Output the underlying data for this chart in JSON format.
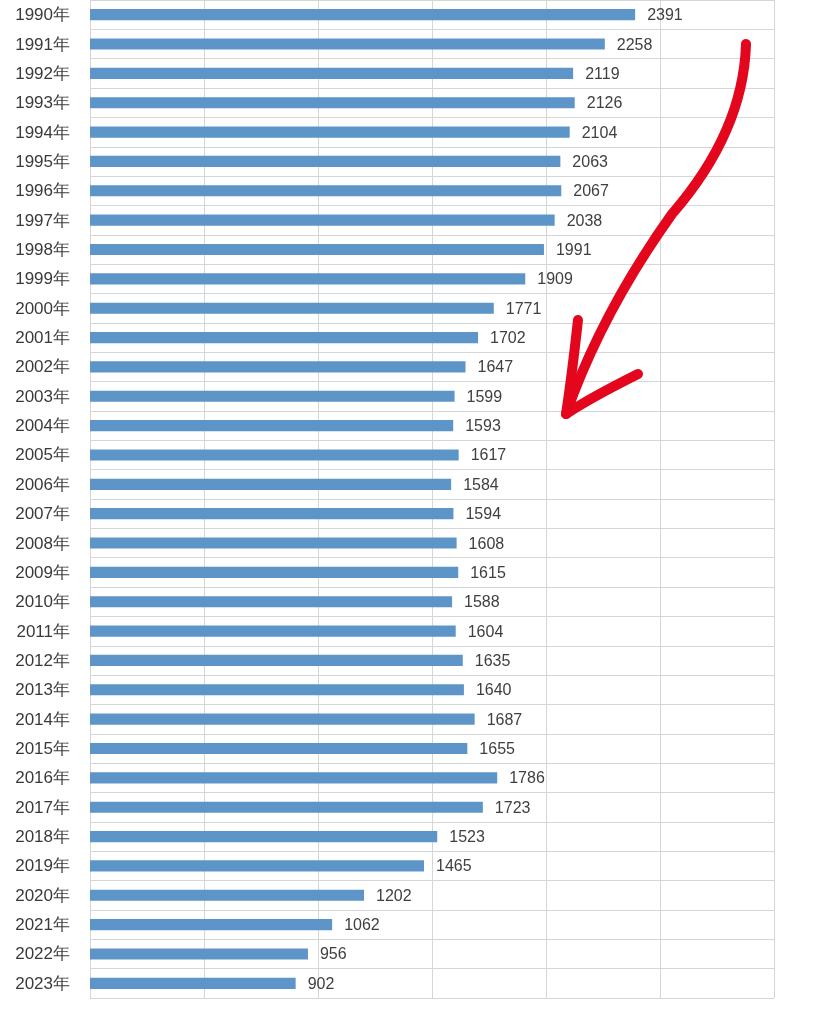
{
  "chart_data": {
    "type": "bar",
    "orientation": "horizontal",
    "categories": [
      "1990年",
      "1991年",
      "1992年",
      "1993年",
      "1994年",
      "1995年",
      "1996年",
      "1997年",
      "1998年",
      "1999年",
      "2000年",
      "2001年",
      "2002年",
      "2003年",
      "2004年",
      "2005年",
      "2006年",
      "2007年",
      "2008年",
      "2009年",
      "2010年",
      "2011年",
      "2012年",
      "2013年",
      "2014年",
      "2015年",
      "2016年",
      "2017年",
      "2018年",
      "2019年",
      "2020年",
      "2021年",
      "2022年",
      "2023年"
    ],
    "values": [
      2391,
      2258,
      2119,
      2126,
      2104,
      2063,
      2067,
      2038,
      1991,
      1909,
      1771,
      1702,
      1647,
      1599,
      1593,
      1617,
      1584,
      1594,
      1608,
      1615,
      1588,
      1604,
      1635,
      1640,
      1687,
      1655,
      1786,
      1723,
      1523,
      1465,
      1202,
      1062,
      956,
      902
    ],
    "color": "#5e95c9",
    "xlim": [
      0,
      3000
    ],
    "xticks": [
      {
        "value": 0,
        "label": null
      },
      {
        "value": 500,
        "label": null
      },
      {
        "value": 1000,
        "label": null
      },
      {
        "value": 1500,
        "label": null
      },
      {
        "value": 2000,
        "label": null
      },
      {
        "value": 2500,
        "label": null
      },
      {
        "value": 3000,
        "label": null
      }
    ],
    "tick_labels": "y",
    "grid": true,
    "data_labels": true
  }
}
